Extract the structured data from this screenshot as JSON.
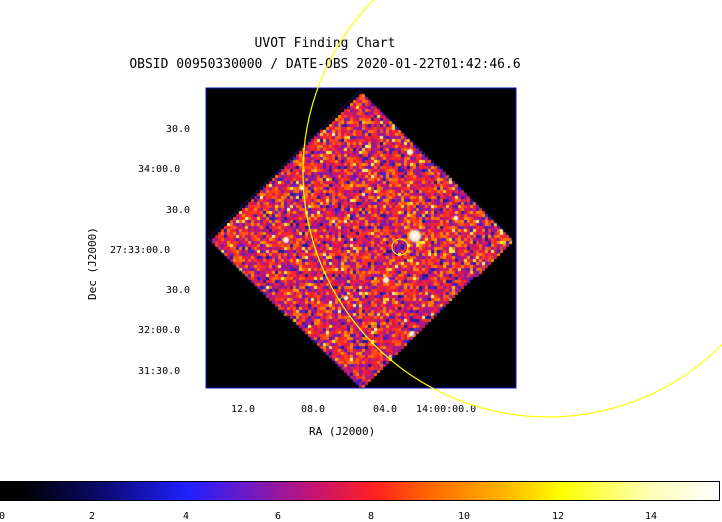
{
  "title": "UVOT Finding Chart",
  "subtitle": "OBSID 00950330000 / DATE-OBS 2020-01-22T01:42:46.6",
  "axes": {
    "xlabel": "RA (J2000)",
    "ylabel": "Dec (J2000)",
    "x_ticks": [
      "12.0",
      "08.0",
      "04.0",
      "14:00:00.0"
    ],
    "y_ticks": [
      "30.0",
      "34:00.0",
      "30.0",
      "27:33:00.0",
      "30.0",
      "32:00.0",
      "31:30.0"
    ]
  },
  "colorbar": {
    "ticks": [
      "0",
      "2",
      "4",
      "6",
      "8",
      "10",
      "12",
      "14"
    ],
    "colormap": "heat"
  },
  "colors": {
    "circle": "#ffff00",
    "image_border": "#1010c0",
    "background": "#000000"
  }
}
